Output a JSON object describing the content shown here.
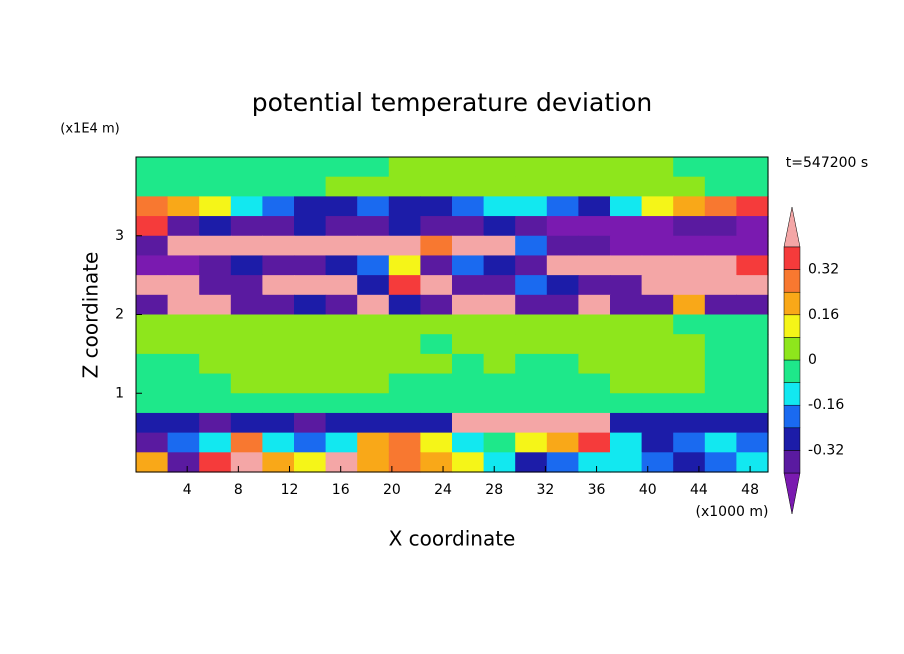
{
  "chart_data": {
    "type": "contourf",
    "title": "potential temperature deviation",
    "xlabel": "X coordinate",
    "ylabel": "Z coordinate",
    "x_unit": "(x1000 m)",
    "y_unit": "(x1E4 m)",
    "annotation": "t=547200 s",
    "xlim": [
      0,
      49.4
    ],
    "ylim": [
      0,
      4
    ],
    "xticks": [
      4,
      8,
      12,
      16,
      20,
      24,
      28,
      32,
      36,
      40,
      44,
      48
    ],
    "yticks": [
      1,
      2,
      3
    ],
    "levels": [
      -0.4,
      -0.32,
      -0.24,
      -0.16,
      -0.08,
      0,
      0.08,
      0.16,
      0.24,
      0.32,
      0.4
    ],
    "colors": [
      "#7a1ab0",
      "#5a1aa0",
      "#1c1ca8",
      "#1a6af0",
      "#12e8f0",
      "#1ee88a",
      "#8ee61c",
      "#f5f518",
      "#f9a818",
      "#f87830",
      "#f53b3b",
      "#f4a6a6"
    ],
    "colorbar_ticks": [
      0.32,
      0.16,
      0,
      -0.16,
      -0.32
    ],
    "z": [
      [
        -0.04,
        -0.04,
        -0.04,
        -0.04,
        -0.04,
        -0.04,
        -0.04,
        -0.04,
        0.04,
        0.04,
        0.04,
        0.04,
        0.04,
        0.04,
        0.04,
        0.04,
        0.04,
        -0.04,
        -0.04,
        -0.04
      ],
      [
        -0.04,
        -0.04,
        -0.04,
        -0.04,
        -0.04,
        -0.04,
        0.04,
        0.04,
        0.04,
        0.04,
        0.04,
        0.04,
        0.04,
        0.04,
        0.04,
        0.04,
        0.04,
        0.04,
        -0.04,
        -0.04
      ],
      [
        0.28,
        0.2,
        0.12,
        -0.12,
        -0.2,
        -0.28,
        -0.28,
        -0.2,
        -0.28,
        -0.28,
        -0.2,
        -0.12,
        -0.12,
        -0.2,
        -0.28,
        -0.12,
        0.12,
        0.2,
        0.28,
        0.36
      ],
      [
        0.36,
        -0.36,
        -0.28,
        -0.36,
        -0.36,
        -0.28,
        -0.36,
        -0.36,
        -0.28,
        -0.36,
        -0.36,
        -0.28,
        -0.36,
        -0.45,
        -0.45,
        -0.45,
        -0.45,
        -0.36,
        -0.36,
        -0.45
      ],
      [
        -0.36,
        0.45,
        0.45,
        0.45,
        0.45,
        0.45,
        0.45,
        0.45,
        0.45,
        0.28,
        0.45,
        0.45,
        -0.2,
        -0.36,
        -0.36,
        -0.45,
        -0.45,
        -0.45,
        -0.45,
        -0.45
      ],
      [
        -0.45,
        -0.45,
        -0.36,
        -0.28,
        -0.36,
        -0.36,
        -0.28,
        -0.2,
        0.12,
        -0.36,
        -0.2,
        -0.28,
        -0.36,
        0.45,
        0.45,
        0.45,
        0.45,
        0.45,
        0.45,
        0.36
      ],
      [
        0.45,
        0.45,
        -0.36,
        -0.36,
        0.45,
        0.45,
        0.45,
        -0.28,
        0.36,
        0.45,
        -0.36,
        -0.36,
        -0.2,
        -0.28,
        -0.36,
        -0.36,
        0.45,
        0.45,
        0.45,
        0.45
      ],
      [
        -0.36,
        0.45,
        0.45,
        -0.36,
        -0.36,
        -0.28,
        -0.36,
        0.45,
        -0.28,
        -0.36,
        0.45,
        0.45,
        -0.36,
        -0.36,
        0.45,
        -0.36,
        -0.36,
        0.2,
        -0.36,
        -0.36
      ],
      [
        0.04,
        0.04,
        0.04,
        0.04,
        0.04,
        0.04,
        0.04,
        0.04,
        0.04,
        0.04,
        0.04,
        0.04,
        0.04,
        0.04,
        0.04,
        0.04,
        0.04,
        -0.04,
        -0.04,
        -0.04
      ],
      [
        0.04,
        0.04,
        0.04,
        0.04,
        0.04,
        0.04,
        0.04,
        0.04,
        0.04,
        -0.04,
        0.04,
        0.04,
        0.04,
        0.04,
        0.04,
        0.04,
        0.04,
        0.04,
        -0.04,
        -0.04
      ],
      [
        -0.04,
        -0.04,
        0.04,
        0.04,
        0.04,
        0.04,
        0.04,
        0.04,
        0.04,
        0.04,
        -0.04,
        0.04,
        -0.04,
        -0.04,
        0.04,
        0.04,
        0.04,
        0.04,
        -0.04,
        -0.04
      ],
      [
        -0.04,
        -0.04,
        -0.04,
        0.04,
        0.04,
        0.04,
        0.04,
        0.04,
        -0.04,
        -0.04,
        -0.04,
        -0.04,
        -0.04,
        -0.04,
        -0.04,
        0.04,
        0.04,
        0.04,
        -0.04,
        -0.04
      ],
      [
        -0.04,
        -0.04,
        -0.04,
        -0.04,
        -0.04,
        -0.04,
        -0.04,
        -0.04,
        -0.04,
        -0.04,
        -0.04,
        -0.04,
        -0.04,
        -0.04,
        -0.04,
        -0.04,
        -0.04,
        -0.04,
        -0.04,
        -0.04
      ],
      [
        -0.28,
        -0.28,
        -0.36,
        -0.28,
        -0.28,
        -0.36,
        -0.28,
        -0.28,
        -0.28,
        -0.28,
        0.45,
        0.45,
        0.45,
        0.45,
        0.45,
        -0.28,
        -0.28,
        -0.28,
        -0.28,
        -0.28
      ],
      [
        -0.36,
        -0.2,
        -0.12,
        0.28,
        -0.12,
        -0.2,
        -0.12,
        0.2,
        0.28,
        0.12,
        -0.12,
        -0.04,
        0.12,
        0.2,
        0.36,
        -0.12,
        -0.28,
        -0.2,
        -0.12,
        -0.2
      ],
      [
        0.2,
        -0.36,
        0.36,
        0.45,
        0.2,
        0.12,
        0.45,
        0.2,
        0.28,
        0.2,
        0.12,
        -0.12,
        -0.28,
        -0.2,
        -0.12,
        -0.12,
        -0.2,
        -0.28,
        -0.2,
        -0.12
      ]
    ]
  }
}
